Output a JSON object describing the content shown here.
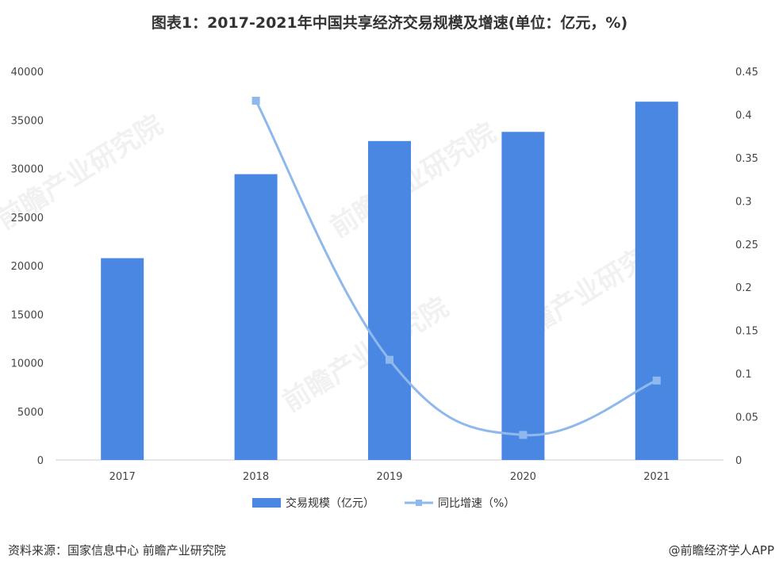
{
  "title": "图表1：2017-2021年中国共享经济交易规模及增速(单位：亿元，%)",
  "footer": {
    "source": "资料来源：国家信息中心 前瞻产业研究院",
    "brand": "@前瞻经济学人APP"
  },
  "watermark": "前瞻产业研究院",
  "colors": {
    "bar": "#4a87e3",
    "line": "#8fb8ec"
  },
  "chart_data": {
    "type": "bar+line",
    "categories": [
      "2017",
      "2018",
      "2019",
      "2020",
      "2021"
    ],
    "series": [
      {
        "name": "交易规模（亿元）",
        "type": "bar",
        "axis": "left",
        "values": [
          20772,
          29420,
          32828,
          33773,
          36881
        ]
      },
      {
        "name": "同比增速（%）",
        "type": "line",
        "axis": "right",
        "values": [
          null,
          0.416,
          0.116,
          0.029,
          0.092
        ]
      }
    ],
    "left_axis": {
      "min": 0,
      "max": 40000,
      "step": 5000,
      "ticks": [
        "0",
        "5000",
        "10000",
        "15000",
        "20000",
        "25000",
        "30000",
        "35000",
        "40000"
      ]
    },
    "right_axis": {
      "min": 0,
      "max": 0.45,
      "step": 0.05,
      "ticks": [
        "0",
        "0.05",
        "0.1",
        "0.15",
        "0.2",
        "0.25",
        "0.3",
        "0.35",
        "0.4",
        "0.45"
      ]
    },
    "legend_position": "bottom",
    "grid": false
  }
}
